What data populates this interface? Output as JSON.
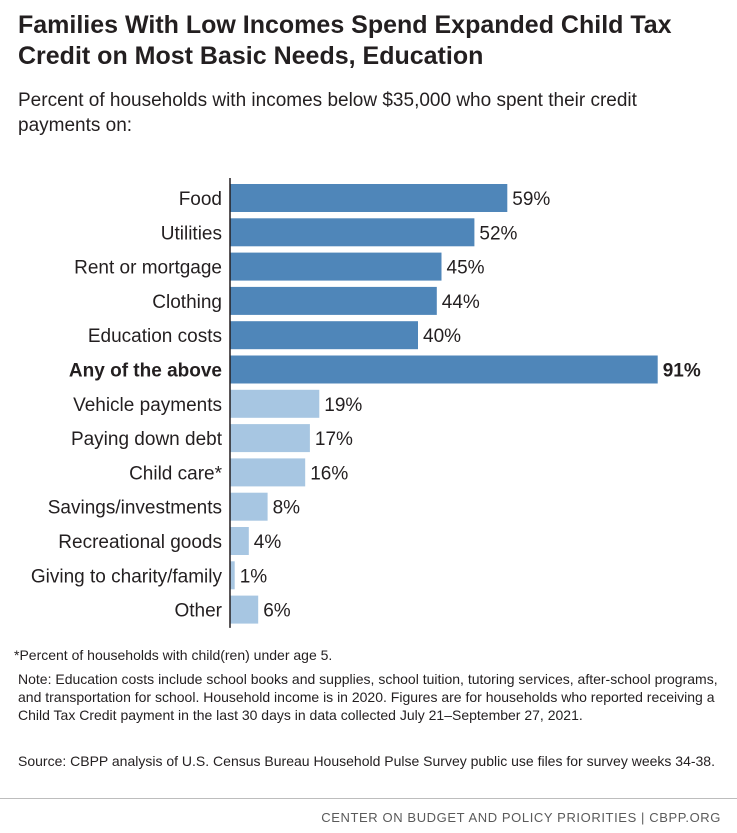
{
  "header": {
    "title": "Families With Low Incomes Spend Expanded Child Tax Credit on Most Basic Needs, Education",
    "subtitle": "Percent of households with incomes below $35,000 who spent their credit payments on:"
  },
  "colors": {
    "primary_bar": "#4f86b9",
    "secondary_bar": "#a7c6e2",
    "axis": "#231f20",
    "text": "#231f20"
  },
  "chart_data": {
    "type": "bar",
    "orientation": "horizontal",
    "categories": [
      "Food",
      "Utilities",
      "Rent or mortgage",
      "Clothing",
      "Education costs",
      "Any of the above",
      "Vehicle payments",
      "Paying down debt",
      "Child care*",
      "Savings/investments",
      "Recreational goods",
      "Giving to charity/family",
      "Other"
    ],
    "values": [
      59,
      52,
      45,
      44,
      40,
      91,
      19,
      17,
      16,
      8,
      4,
      1,
      6
    ],
    "value_labels": [
      "59%",
      "52%",
      "45%",
      "44%",
      "40%",
      "91%",
      "19%",
      "17%",
      "16%",
      "8%",
      "4%",
      "1%",
      "6%"
    ],
    "highlight": [
      "primary",
      "primary",
      "primary",
      "primary",
      "primary",
      "primary",
      "secondary",
      "secondary",
      "secondary",
      "secondary",
      "secondary",
      "secondary",
      "secondary"
    ],
    "bold_categories": [
      "Any of the above"
    ],
    "xlim": [
      0,
      100
    ],
    "grid": false,
    "title": "",
    "xlabel": "",
    "ylabel": ""
  },
  "notes": {
    "footnote": "*Percent of households with child(ren) under age 5.",
    "note": "Note: Education costs include school books and supplies, school tuition, tutoring services, after-school programs, and transportation for school. Household income is in 2020. Figures are for households who reported receiving a Child Tax Credit payment in the last 30 days in data collected July 21–September 27, 2021.",
    "source": "Source: CBPP analysis of U.S. Census Bureau Household Pulse Survey public use files for survey weeks 34-38."
  },
  "footer": {
    "org": "CENTER ON BUDGET AND POLICY PRIORITIES | CBPP.ORG"
  }
}
